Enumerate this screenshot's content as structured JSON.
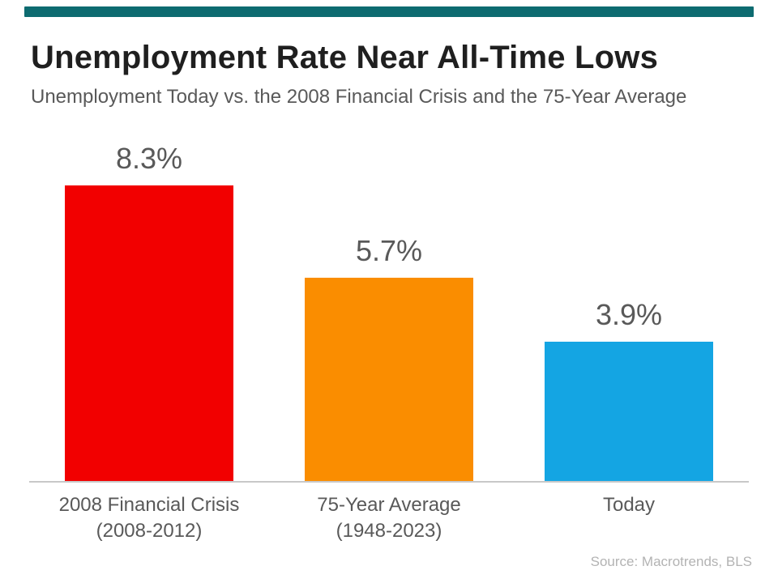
{
  "brand": {
    "stripe_color": "#0d6b70"
  },
  "chart_data": {
    "type": "bar",
    "title": "Unemployment Rate Near All-Time Lows",
    "subtitle": "Unemployment Today vs. the 2008 Financial Crisis and the 75-Year Average",
    "categories": [
      "2008 Financial Crisis (2008-2012)",
      "75-Year Average (1948-2023)",
      "Today"
    ],
    "category_lines": [
      [
        "2008 Financial Crisis",
        "(2008-2012)"
      ],
      [
        "75-Year Average",
        "(1948-2023)"
      ],
      [
        "Today"
      ]
    ],
    "values": [
      8.3,
      5.7,
      3.9
    ],
    "value_labels": [
      "8.3%",
      "5.7%",
      "3.9%"
    ],
    "bar_colors": [
      "#f20000",
      "#fa8d00",
      "#14a5e3"
    ],
    "ylabel": "",
    "xlabel": "",
    "ylim": [
      0,
      9.8
    ],
    "grid": false,
    "legend": false,
    "source": "Source: Macrotrends, BLS"
  }
}
